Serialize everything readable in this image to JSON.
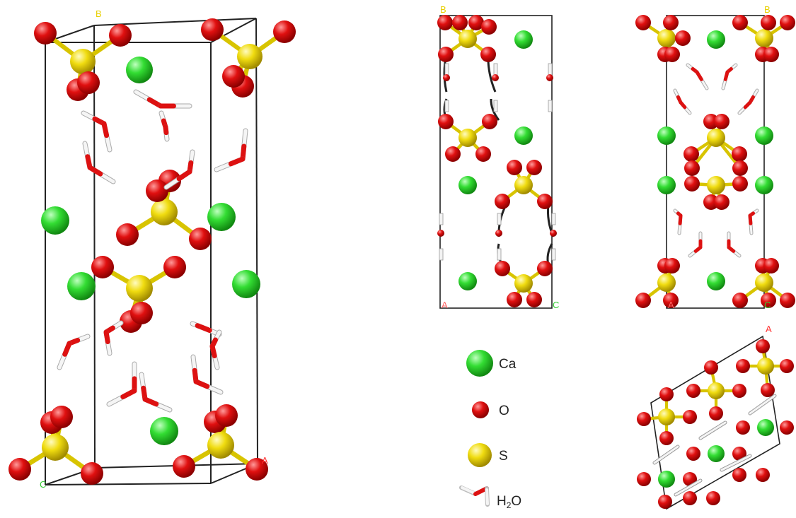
{
  "colors": {
    "Ca": "#22cc22",
    "O": "#dd1111",
    "S": "#e8d000",
    "H": "#f2f2f2",
    "bond_O": "#e02020",
    "cell": "#222222",
    "axis_A": "#ff3333",
    "axis_B": "#e8d000",
    "axis_C": "#33cc33"
  },
  "axis_labels": {
    "A": "A",
    "B": "B",
    "C": "C"
  },
  "legend": {
    "ca_label": "Ca",
    "o_label": "O",
    "s_label": "S",
    "h2o_label_main": "H",
    "h2o_label_sub": "2",
    "h2o_label_tail": "O"
  }
}
